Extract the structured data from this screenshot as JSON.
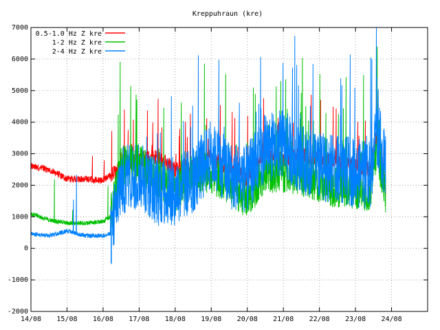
{
  "chart_data": {
    "type": "line",
    "title": "Kreppuhraun (kre)",
    "xlabel": "",
    "ylabel": "",
    "ylim": [
      -2000,
      7000
    ],
    "yticks": [
      -2000,
      -1000,
      0,
      1000,
      2000,
      3000,
      4000,
      5000,
      6000,
      7000
    ],
    "ytick_labels": [
      "-2000",
      "-1000",
      "0",
      "1000",
      "2000",
      "3000",
      "4000",
      "5000",
      "6000",
      "7000"
    ],
    "x_range_days": [
      0,
      11
    ],
    "xtick_labels": [
      "14/08",
      "15/08",
      "16/08",
      "17/08",
      "18/08",
      "19/08",
      "20/08",
      "21/08",
      "22/08",
      "23/08",
      "24/08"
    ],
    "grid": true,
    "legend_position": "top-left",
    "series": [
      {
        "name": "0.5-1.0 Hz Z kre",
        "color": "#ff0000",
        "x": [
          "14/08 00:00",
          "14/08 12:00",
          "15/08 00:00",
          "15/08 12:00",
          "16/08 00:00",
          "16/08 05:00",
          "16/08 12:00",
          "17/08 00:00",
          "17/08 12:00",
          "18/08 00:00",
          "18/08 12:00",
          "19/08 00:00",
          "19/08 12:00",
          "20/08 00:00",
          "20/08 12:00",
          "21/08 00:00",
          "21/08 12:00",
          "22/08 00:00",
          "22/08 12:00",
          "23/08 00:00",
          "23/08 10:00",
          "23/08 14:00",
          "23/08 20:00"
        ],
        "y": [
          2600,
          2500,
          2200,
          2200,
          2150,
          2300,
          2600,
          2800,
          2900,
          2500,
          2600,
          2900,
          2500,
          2200,
          3100,
          2800,
          3000,
          2800,
          2700,
          2600,
          2500,
          3500,
          1900
        ]
      },
      {
        "name": "1-2 Hz Z kre",
        "color": "#00c000",
        "x": [
          "14/08 00:00",
          "14/08 12:00",
          "15/08 00:00",
          "15/08 12:00",
          "16/08 00:00",
          "16/08 05:00",
          "16/08 12:00",
          "17/08 00:00",
          "17/08 12:00",
          "18/08 00:00",
          "18/08 12:00",
          "19/08 00:00",
          "19/08 12:00",
          "20/08 00:00",
          "20/08 12:00",
          "21/08 00:00",
          "21/08 12:00",
          "22/08 00:00",
          "22/08 12:00",
          "23/08 00:00",
          "23/08 10:00",
          "23/08 14:00",
          "23/08 20:00"
        ],
        "y": [
          1100,
          900,
          800,
          800,
          850,
          1000,
          2600,
          2700,
          2200,
          1800,
          2400,
          2400,
          2000,
          1600,
          2400,
          2400,
          2300,
          2100,
          1900,
          1900,
          1800,
          3200,
          1700
        ]
      },
      {
        "name": "2-4 Hz Z kre",
        "color": "#0080ff",
        "x": [
          "14/08 00:00",
          "14/08 12:00",
          "15/08 00:00",
          "15/08 12:00",
          "16/08 00:00",
          "16/08 05:00",
          "16/08 12:00",
          "17/08 00:00",
          "17/08 12:00",
          "18/08 00:00",
          "18/08 12:00",
          "19/08 00:00",
          "19/08 12:00",
          "20/08 00:00",
          "20/08 12:00",
          "21/08 00:00",
          "21/08 12:00",
          "22/08 00:00",
          "22/08 12:00",
          "23/08 00:00",
          "23/08 10:00",
          "23/08 14:00",
          "23/08 20:00"
        ],
        "y": [
          450,
          400,
          550,
          400,
          400,
          450,
          2100,
          2400,
          1800,
          1800,
          2200,
          3000,
          2300,
          2200,
          3200,
          3300,
          2800,
          2600,
          2500,
          2400,
          2300,
          3800,
          2500
        ]
      }
    ]
  }
}
